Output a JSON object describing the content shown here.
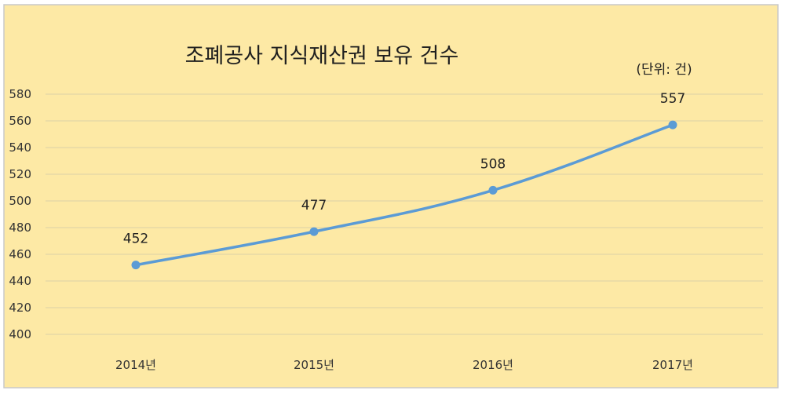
{
  "chart_data": {
    "type": "line",
    "title": "조폐공사 지식재산권 보유 건수",
    "unit_note": "(단위: 건)",
    "categories": [
      "2014년",
      "2015년",
      "2016년",
      "2017년"
    ],
    "series": [
      {
        "values": [
          452,
          477,
          508,
          557
        ]
      }
    ],
    "data_labels": [
      "452",
      "477",
      "508",
      "557"
    ],
    "ylim": [
      400,
      580
    ],
    "yticks": [
      400,
      420,
      440,
      460,
      480,
      500,
      520,
      540,
      560,
      580
    ],
    "ytick_labels": [
      "400",
      "420",
      "440",
      "460",
      "480",
      "500",
      "520",
      "540",
      "560",
      "580"
    ],
    "grid": true,
    "legend": "none",
    "colors": {
      "background": "#fde9a5",
      "frame": "#c9c9c9",
      "gridline": "#dcd1a8",
      "line": "#5b9bd5"
    }
  }
}
